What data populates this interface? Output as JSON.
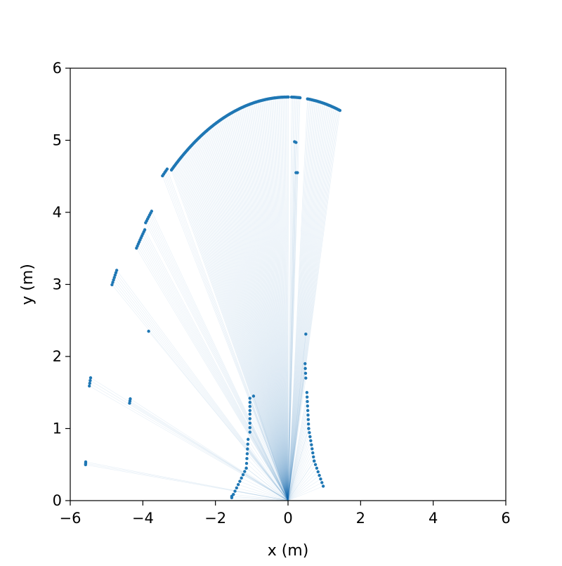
{
  "chart_data": {
    "type": "scatter",
    "title": "",
    "xlabel": "x (m)",
    "ylabel": "y (m)",
    "xlim": [
      -6,
      6
    ],
    "ylim": [
      0,
      6
    ],
    "xticks": [
      -6,
      -4,
      -2,
      0,
      2,
      4,
      6
    ],
    "yticks": [
      0,
      1,
      2,
      3,
      4,
      5,
      6
    ],
    "xtick_labels": [
      "−6",
      "−4",
      "−2",
      "0",
      "2",
      "4",
      "6"
    ],
    "ytick_labels": [
      "0",
      "1",
      "2",
      "3",
      "4",
      "5",
      "6"
    ],
    "grid": false,
    "legend": "none",
    "point_color": "#1f77b4",
    "ray_color": "#1f77b4",
    "ray_origin": [
      0,
      0
    ],
    "series": [
      {
        "segments": [
          {
            "kind": "arc",
            "radius": 5.6,
            "angle_start_deg": 125,
            "angle_end_deg": 90,
            "step_deg": 0.3
          },
          {
            "kind": "arc",
            "radius": 5.6,
            "angle_start_deg": 89,
            "angle_end_deg": 86.5,
            "step_deg": 0.3
          },
          {
            "kind": "arc",
            "radius": 5.6,
            "angle_start_deg": 84.5,
            "angle_end_deg": 75.2,
            "step_deg": 0.3
          },
          {
            "kind": "arc",
            "radius": 5.68,
            "angle_start_deg": 127.5,
            "angle_end_deg": 126,
            "step_deg": 0.4
          },
          {
            "kind": "arc",
            "radius": 5.5,
            "angle_start_deg": 135.5,
            "angle_end_deg": 133.2,
            "step_deg": 0.4
          },
          {
            "kind": "arc",
            "radius": 5.45,
            "angle_start_deg": 140,
            "angle_end_deg": 136.5,
            "step_deg": 0.4
          },
          {
            "kind": "arc",
            "radius": 5.7,
            "angle_start_deg": 148.3,
            "angle_end_deg": 145.8,
            "step_deg": 0.4
          },
          {
            "kind": "arc",
            "radius": 5.7,
            "angle_start_deg": 163.8,
            "angle_end_deg": 162.6,
            "step_deg": 0.4
          },
          {
            "kind": "arc",
            "radius": 4.57,
            "angle_start_deg": 162.8,
            "angle_end_deg": 162.0,
            "step_deg": 0.4
          },
          {
            "kind": "arc",
            "radius": 5.6,
            "angle_start_deg": 174.9,
            "angle_end_deg": 174.5,
            "step_deg": 0.2
          },
          {
            "kind": "line",
            "from": [
              -1.55,
              0.04
            ],
            "to": [
              -1.15,
              0.45
            ],
            "n": 10
          },
          {
            "kind": "line",
            "from": [
              -1.15,
              0.45
            ],
            "to": [
              -1.1,
              0.85
            ],
            "n": 7
          },
          {
            "kind": "line",
            "from": [
              -1.05,
              0.95
            ],
            "to": [
              -1.05,
              1.2
            ],
            "n": 5
          },
          {
            "kind": "line",
            "from": [
              -1.05,
              1.25
            ],
            "to": [
              -1.05,
              1.42
            ],
            "n": 4
          },
          {
            "kind": "line",
            "from": [
              0.47,
              1.9
            ],
            "to": [
              0.49,
              1.7
            ],
            "n": 4
          },
          {
            "kind": "line",
            "from": [
              0.52,
              1.5
            ],
            "to": [
              0.57,
              1.0
            ],
            "n": 9
          },
          {
            "kind": "line",
            "from": [
              0.57,
              1.0
            ],
            "to": [
              0.72,
              0.55
            ],
            "n": 9
          },
          {
            "kind": "line",
            "from": [
              0.72,
              0.55
            ],
            "to": [
              0.97,
              0.2
            ],
            "n": 8
          },
          {
            "kind": "point",
            "x": 0.18,
            "y": 4.98
          },
          {
            "kind": "point",
            "x": 0.22,
            "y": 4.97
          },
          {
            "kind": "point",
            "x": 0.22,
            "y": 4.55
          },
          {
            "kind": "point",
            "x": 0.26,
            "y": 4.55
          },
          {
            "kind": "point",
            "x": 0.49,
            "y": 2.31
          },
          {
            "kind": "point",
            "x": -3.84,
            "y": 2.35
          },
          {
            "kind": "point",
            "x": -0.95,
            "y": 1.45
          },
          {
            "kind": "point",
            "x": -1.55,
            "y": 0.06
          }
        ]
      }
    ]
  }
}
